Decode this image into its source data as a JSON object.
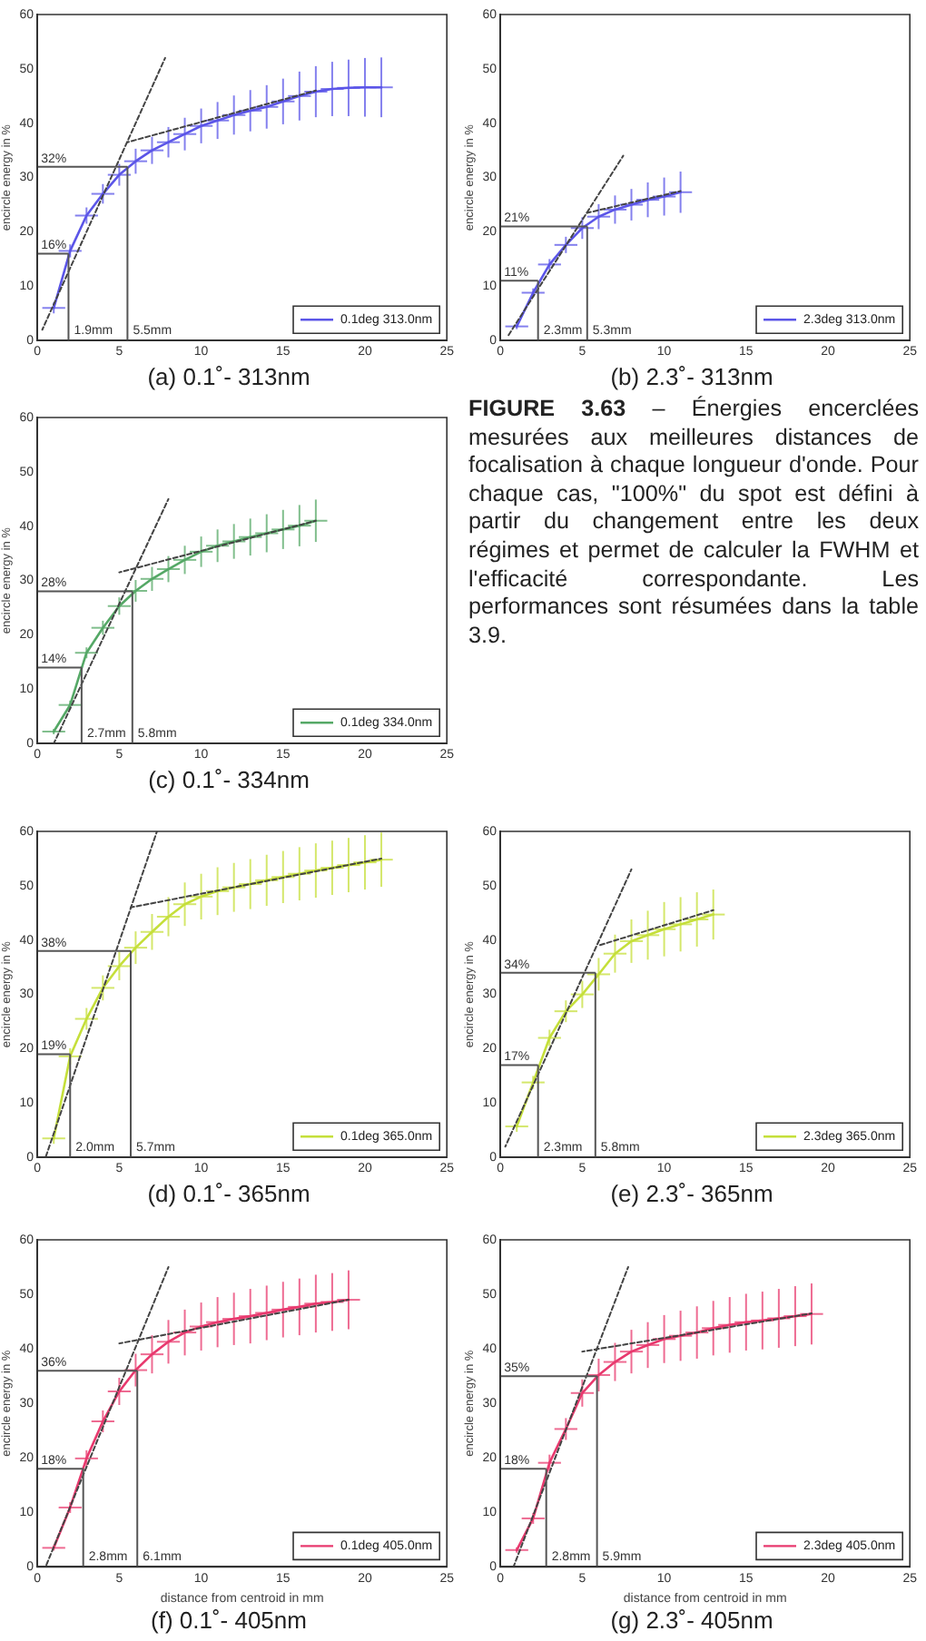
{
  "chart_data": [
    {
      "type": "line",
      "title": "(a) 0.1˚- 313nm",
      "ylabel": "encircle energy in %",
      "xlim": [
        0,
        25
      ],
      "xticks": [
        0,
        5,
        10,
        15,
        20,
        25
      ],
      "ylim": [
        0,
        60
      ],
      "yticks": [
        0,
        10,
        20,
        30,
        40,
        50,
        60
      ],
      "grid": false,
      "legend": "bottom right",
      "marker": "none",
      "x": [
        1,
        2,
        3,
        4,
        5,
        6,
        7,
        8,
        9,
        10,
        11,
        12,
        13,
        14,
        15,
        16,
        17,
        18,
        19,
        20,
        21
      ],
      "series": [
        {
          "name": "0.1deg 313.0nm",
          "color": "#5b55e8",
          "values": [
            6,
            16.5,
            23,
            27,
            30.5,
            33,
            35,
            36.5,
            38,
            39.5,
            40.5,
            41.5,
            42.3,
            43,
            44,
            45,
            45.8,
            46.3,
            46.5,
            46.6,
            46.6
          ],
          "errors": [
            1,
            1.2,
            1.5,
            1.8,
            2,
            2.3,
            2.5,
            2.8,
            3,
            3.2,
            3.4,
            3.6,
            3.8,
            4,
            4.2,
            4.5,
            4.7,
            5,
            5.2,
            5.4,
            5.5
          ],
          "xerrors": [
            0.7,
            0.7,
            0.7,
            0.7,
            0.7,
            0.7,
            0.7,
            0.7,
            0.7,
            0.7,
            0.7,
            0.7,
            0.7,
            0.7,
            0.7,
            0.7,
            0.7,
            0.7,
            0.7,
            0.7,
            0.7
          ]
        },
        {
          "type": "line",
          "color": "#444444",
          "line_style": "dashed",
          "x": [
            0.3,
            7.8
          ],
          "values": [
            2,
            52
          ]
        },
        {
          "type": "line",
          "color": "#444444",
          "line_style": "dashed",
          "x": [
            5.5,
            17
          ],
          "values": [
            36.5,
            46
          ]
        }
      ],
      "ref_lines": [
        {
          "axis": "y",
          "value": 16,
          "label": "16%"
        },
        {
          "axis": "y",
          "value": 32,
          "label": "32%"
        },
        {
          "axis": "x",
          "value": 1.9,
          "label": "1.9mm"
        },
        {
          "axis": "x",
          "value": 5.5,
          "label": "5.5mm"
        }
      ]
    },
    {
      "type": "line",
      "title": "(b) 2.3˚- 313nm",
      "ylabel": "encircle energy in %",
      "xlim": [
        0,
        25
      ],
      "xticks": [
        0,
        5,
        10,
        15,
        20,
        25
      ],
      "ylim": [
        0,
        60
      ],
      "yticks": [
        0,
        10,
        20,
        30,
        40,
        50,
        60
      ],
      "grid": false,
      "legend": "bottom right",
      "marker": "none",
      "x": [
        1,
        2,
        3,
        4,
        5,
        6,
        7,
        8,
        9,
        10,
        11
      ],
      "series": [
        {
          "name": "2.3deg 313.0nm",
          "color": "#5b55e8",
          "values": [
            2.6,
            8.8,
            14,
            17.6,
            20.7,
            22.8,
            24.1,
            25,
            25.9,
            26.5,
            27.3
          ],
          "errors": [
            0.5,
            0.8,
            1,
            1.5,
            2,
            2.3,
            2.6,
            2.9,
            3.2,
            3.5,
            3.8
          ],
          "xerrors": [
            0.7,
            0.7,
            0.7,
            0.7,
            0.7,
            0.7,
            0.7,
            0.7,
            0.7,
            0.7,
            0.7
          ]
        },
        {
          "type": "line",
          "color": "#444444",
          "line_style": "dashed",
          "x": [
            0.5,
            7.5
          ],
          "values": [
            1,
            34
          ]
        },
        {
          "type": "line",
          "color": "#444444",
          "line_style": "dashed",
          "x": [
            5.3,
            11
          ],
          "values": [
            23.5,
            27.5
          ]
        }
      ],
      "ref_lines": [
        {
          "axis": "y",
          "value": 11,
          "label": "11%"
        },
        {
          "axis": "y",
          "value": 21,
          "label": "21%"
        },
        {
          "axis": "x",
          "value": 2.3,
          "label": "2.3mm"
        },
        {
          "axis": "x",
          "value": 5.3,
          "label": "5.3mm"
        }
      ]
    },
    {
      "type": "line",
      "title": "(c) 0.1˚- 334nm",
      "ylabel": "encircle energy in %",
      "xlim": [
        0,
        25
      ],
      "xticks": [
        0,
        5,
        10,
        15,
        20,
        25
      ],
      "ylim": [
        0,
        60
      ],
      "yticks": [
        0,
        10,
        20,
        30,
        40,
        50,
        60
      ],
      "grid": false,
      "legend": "bottom right",
      "marker": "none",
      "x": [
        1,
        2,
        3,
        4,
        5,
        6,
        7,
        8,
        9,
        10,
        11,
        12,
        13,
        14,
        15,
        16,
        17
      ],
      "series": [
        {
          "name": "0.1deg 334.0nm",
          "color": "#55a866",
          "values": [
            2.2,
            7.1,
            16.7,
            21.3,
            25.3,
            28.1,
            30.3,
            32.1,
            33.8,
            35.3,
            36.4,
            37.2,
            38,
            38.7,
            39.4,
            40.1,
            41
          ],
          "errors": [
            0.5,
            0.8,
            1,
            1.3,
            1.6,
            2,
            2.2,
            2.4,
            2.6,
            2.8,
            3,
            3.2,
            3.4,
            3.5,
            3.6,
            3.8,
            3.9
          ],
          "xerrors": [
            0.7,
            0.7,
            0.7,
            0.7,
            0.7,
            0.7,
            0.7,
            0.7,
            0.7,
            0.7,
            0.7,
            0.7,
            0.7,
            0.7,
            0.7,
            0.7,
            0.7
          ]
        },
        {
          "type": "line",
          "color": "#444444",
          "line_style": "dashed",
          "x": [
            1,
            8
          ],
          "values": [
            0,
            45
          ]
        },
        {
          "type": "line",
          "color": "#444444",
          "line_style": "dashed",
          "x": [
            5,
            17
          ],
          "values": [
            31.5,
            41
          ]
        }
      ],
      "ref_lines": [
        {
          "axis": "y",
          "value": 14,
          "label": "14%"
        },
        {
          "axis": "y",
          "value": 28,
          "label": "28%"
        },
        {
          "axis": "x",
          "value": 2.7,
          "label": "2.7mm"
        },
        {
          "axis": "x",
          "value": 5.8,
          "label": "5.8mm"
        }
      ]
    },
    {
      "type": "other",
      "title": "FIGURE 3.63",
      "annotations": [
        "– Énergies encerclées mesurées aux meilleures distances de focalisation à chaque longueur d'onde. Pour chaque cas, \"100%\" du spot est défini à partir du changement entre les deux régimes et permet de calculer la FWHM et l'efficacité correspondante. Les performances sont résumées dans la table 3.9."
      ]
    },
    {
      "type": "line",
      "title": "(d) 0.1˚- 365nm",
      "ylabel": "encircle energy in %",
      "xlim": [
        0,
        25
      ],
      "xticks": [
        0,
        5,
        10,
        15,
        20,
        25
      ],
      "ylim": [
        0,
        60
      ],
      "yticks": [
        0,
        10,
        20,
        30,
        40,
        50,
        60
      ],
      "grid": false,
      "legend": "bottom right",
      "marker": "none",
      "x": [
        1,
        2,
        3,
        4,
        5,
        6,
        7,
        8,
        9,
        10,
        11,
        12,
        13,
        14,
        15,
        16,
        17,
        18,
        19,
        20,
        21
      ],
      "series": [
        {
          "name": "0.1deg 365.0nm",
          "color": "#c5df3a",
          "values": [
            3.5,
            18.6,
            25.5,
            31.2,
            35.2,
            38.6,
            41.5,
            44.3,
            46.6,
            48,
            49,
            49.7,
            50.3,
            51,
            51.6,
            52.2,
            52.8,
            53.3,
            53.8,
            54.3,
            54.8
          ],
          "errors": [
            1,
            1.5,
            2,
            2.3,
            2.6,
            3,
            3.3,
            3.6,
            4,
            4.2,
            4.4,
            4.5,
            4.6,
            4.7,
            4.8,
            4.9,
            5,
            5,
            5,
            5,
            5
          ],
          "xerrors": [
            0.7,
            0.7,
            0.7,
            0.7,
            0.7,
            0.7,
            0.7,
            0.7,
            0.7,
            0.7,
            0.7,
            0.7,
            0.7,
            0.7,
            0.7,
            0.7,
            0.7,
            0.7,
            0.7,
            0.7,
            0.7
          ]
        },
        {
          "type": "line",
          "color": "#444444",
          "line_style": "dashed",
          "x": [
            0.5,
            7.3
          ],
          "values": [
            0,
            60
          ]
        },
        {
          "type": "line",
          "color": "#444444",
          "line_style": "dashed",
          "x": [
            5.7,
            21
          ],
          "values": [
            46,
            55
          ]
        }
      ],
      "ref_lines": [
        {
          "axis": "y",
          "value": 19,
          "label": "19%"
        },
        {
          "axis": "y",
          "value": 38,
          "label": "38%"
        },
        {
          "axis": "x",
          "value": 2.0,
          "label": "2.0mm"
        },
        {
          "axis": "x",
          "value": 5.7,
          "label": "5.7mm"
        }
      ]
    },
    {
      "type": "line",
      "title": "(e) 2.3˚- 365nm",
      "ylabel": "encircle energy in %",
      "xlim": [
        0,
        25
      ],
      "xticks": [
        0,
        5,
        10,
        15,
        20,
        25
      ],
      "ylim": [
        0,
        60
      ],
      "yticks": [
        0,
        10,
        20,
        30,
        40,
        50,
        60
      ],
      "grid": false,
      "legend": "bottom right",
      "marker": "none",
      "x": [
        1,
        2,
        3,
        4,
        5,
        6,
        7,
        8,
        9,
        10,
        11,
        12,
        13
      ],
      "series": [
        {
          "name": "2.3deg 365.0nm",
          "color": "#c5df3a",
          "values": [
            5.7,
            13.8,
            22,
            26.9,
            30,
            33.7,
            37.5,
            39.8,
            40.9,
            42,
            42.9,
            43.8,
            44.7
          ],
          "errors": [
            1,
            1.2,
            1.5,
            2,
            2.5,
            3,
            3.5,
            4,
            4.5,
            5,
            5,
            5,
            4.6
          ],
          "xerrors": [
            0.7,
            0.7,
            0.7,
            0.7,
            0.7,
            0.7,
            0.7,
            0.7,
            0.7,
            0.7,
            0.7,
            0.7,
            0.7
          ]
        },
        {
          "type": "line",
          "color": "#444444",
          "line_style": "dashed",
          "x": [
            0.3,
            8
          ],
          "values": [
            2,
            53
          ]
        },
        {
          "type": "line",
          "color": "#444444",
          "line_style": "dashed",
          "x": [
            6,
            13
          ],
          "values": [
            39,
            45.5
          ]
        }
      ],
      "ref_lines": [
        {
          "axis": "y",
          "value": 17,
          "label": "17%"
        },
        {
          "axis": "y",
          "value": 34,
          "label": "34%"
        },
        {
          "axis": "x",
          "value": 2.3,
          "label": "2.3mm"
        },
        {
          "axis": "x",
          "value": 5.8,
          "label": "5.8mm"
        }
      ]
    },
    {
      "type": "line",
      "title": "(f) 0.1˚- 405nm",
      "xlabel": "distance from centroid in mm",
      "ylabel": "encircle energy in %",
      "xlim": [
        0,
        25
      ],
      "xticks": [
        0,
        5,
        10,
        15,
        20,
        25
      ],
      "ylim": [
        0,
        60
      ],
      "yticks": [
        0,
        10,
        20,
        30,
        40,
        50,
        60
      ],
      "grid": false,
      "legend": "bottom right",
      "marker": "none",
      "x": [
        1,
        2,
        3,
        4,
        5,
        6,
        7,
        8,
        9,
        10,
        11,
        12,
        13,
        14,
        15,
        16,
        17,
        18,
        19
      ],
      "series": [
        {
          "name": "0.1deg 405.0nm",
          "color": "#e8396e",
          "values": [
            3.5,
            10.9,
            19.9,
            26.7,
            32.2,
            36.1,
            39,
            41.3,
            43,
            44.1,
            44.9,
            45.5,
            46,
            46.6,
            47.2,
            47.7,
            48.3,
            48.6,
            49
          ],
          "errors": [
            0.5,
            1,
            1.5,
            2,
            2.5,
            3,
            3.5,
            4,
            4.2,
            4.4,
            4.6,
            4.8,
            5,
            5,
            5.1,
            5.2,
            5.3,
            5.3,
            5.4
          ],
          "xerrors": [
            0.7,
            0.7,
            0.7,
            0.7,
            0.7,
            0.7,
            0.7,
            0.7,
            0.7,
            0.7,
            0.7,
            0.7,
            0.7,
            0.7,
            0.7,
            0.7,
            0.7,
            0.7,
            0.7
          ]
        },
        {
          "type": "line",
          "color": "#444444",
          "line_style": "dashed",
          "x": [
            0.5,
            8
          ],
          "values": [
            0,
            55
          ]
        },
        {
          "type": "line",
          "color": "#444444",
          "line_style": "dashed",
          "x": [
            5,
            19
          ],
          "values": [
            41,
            49
          ]
        }
      ],
      "ref_lines": [
        {
          "axis": "y",
          "value": 18,
          "label": "18%"
        },
        {
          "axis": "y",
          "value": 36,
          "label": "36%"
        },
        {
          "axis": "x",
          "value": 2.8,
          "label": "2.8mm"
        },
        {
          "axis": "x",
          "value": 6.1,
          "label": "6.1mm"
        }
      ]
    },
    {
      "type": "line",
      "title": "(g) 2.3˚- 405nm",
      "xlabel": "distance from centroid in mm",
      "ylabel": "encircle energy in %",
      "xlim": [
        0,
        25
      ],
      "xticks": [
        0,
        5,
        10,
        15,
        20,
        25
      ],
      "ylim": [
        0,
        60
      ],
      "yticks": [
        0,
        10,
        20,
        30,
        40,
        50,
        60
      ],
      "grid": false,
      "legend": "bottom right",
      "marker": "none",
      "x": [
        1,
        2,
        3,
        4,
        5,
        6,
        7,
        8,
        9,
        10,
        11,
        12,
        13,
        14,
        15,
        16,
        17,
        18,
        19
      ],
      "series": [
        {
          "name": "2.3deg 405.0nm",
          "color": "#e8396e",
          "values": [
            3.1,
            8.9,
            19.1,
            25.3,
            31.9,
            35.2,
            37.6,
            39.5,
            40.7,
            41.8,
            42.4,
            43,
            43.8,
            44.4,
            44.9,
            45.2,
            45.6,
            46,
            46.4
          ],
          "errors": [
            0.5,
            1,
            1.5,
            2,
            2.5,
            3,
            3.5,
            4,
            4.2,
            4.4,
            4.6,
            4.8,
            5,
            5.1,
            5.2,
            5.3,
            5.4,
            5.5,
            5.6
          ],
          "xerrors": [
            0.7,
            0.7,
            0.7,
            0.7,
            0.7,
            0.7,
            0.7,
            0.7,
            0.7,
            0.7,
            0.7,
            0.7,
            0.7,
            0.7,
            0.7,
            0.7,
            0.7,
            0.7,
            0.7
          ]
        },
        {
          "type": "line",
          "color": "#444444",
          "line_style": "dashed",
          "x": [
            0.8,
            7.8
          ],
          "values": [
            0,
            55
          ]
        },
        {
          "type": "line",
          "color": "#444444",
          "line_style": "dashed",
          "x": [
            5,
            19
          ],
          "values": [
            39.5,
            46.5
          ]
        }
      ],
      "ref_lines": [
        {
          "axis": "y",
          "value": 18,
          "label": "18%"
        },
        {
          "axis": "y",
          "value": 35,
          "label": "35%"
        },
        {
          "axis": "x",
          "value": 2.8,
          "label": "2.8mm"
        },
        {
          "axis": "x",
          "value": 5.9,
          "label": "5.9mm"
        }
      ]
    }
  ]
}
